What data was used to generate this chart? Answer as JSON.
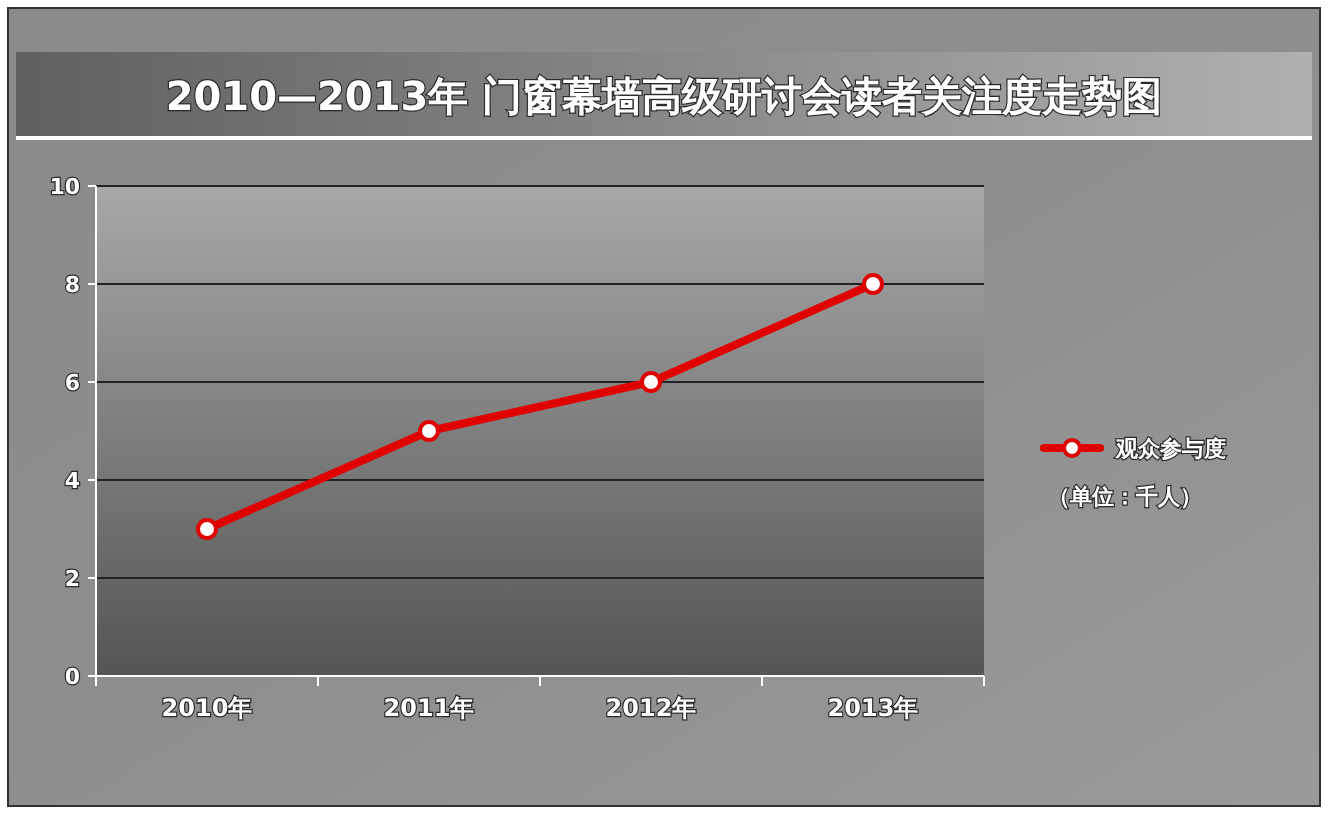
{
  "chart_data": {
    "type": "line",
    "title": "2010—2013年 门窗幕墙高级研讨会读者关注度走势图",
    "categories": [
      "2010年",
      "2011年",
      "2012年",
      "2013年"
    ],
    "series": [
      {
        "name": "观众参与度",
        "color": "#e00000",
        "values": [
          3,
          5,
          6,
          8
        ]
      }
    ],
    "ylim": [
      0,
      10
    ],
    "yticks": [
      0,
      2,
      4,
      6,
      8,
      10
    ],
    "grid": "y",
    "legend": "right",
    "marker": "circle",
    "line_style": "solid",
    "annotations": [
      "（单位：千人）"
    ]
  }
}
